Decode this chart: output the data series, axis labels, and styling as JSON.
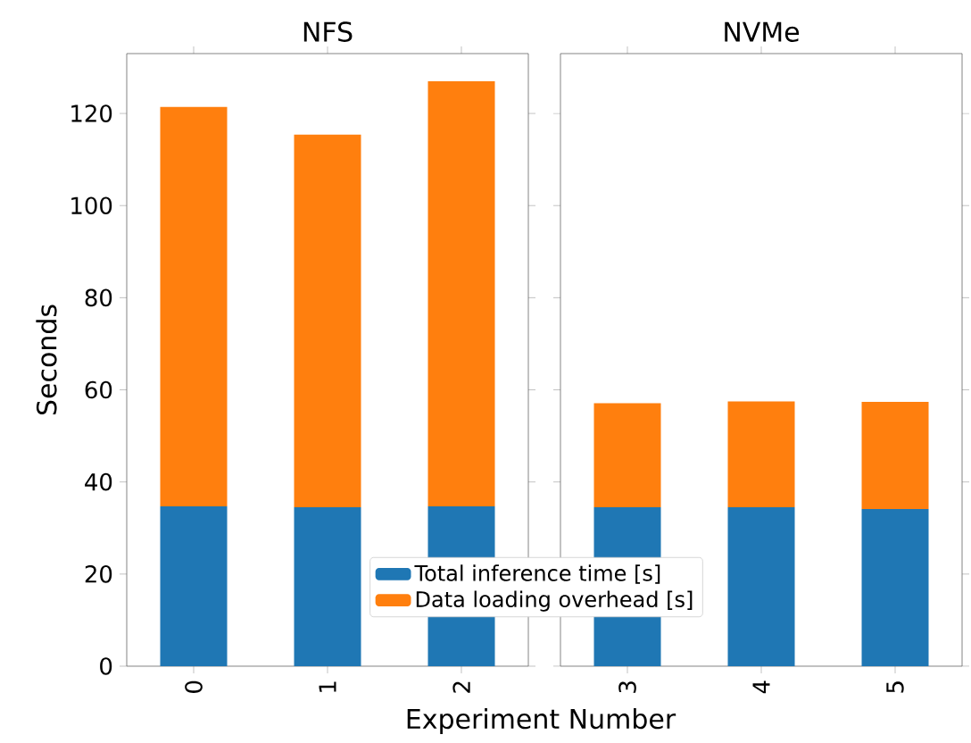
{
  "chart_data": [
    {
      "type": "bar",
      "title": "NFS",
      "xlabel": "Experiment Number",
      "ylabel": "Seconds",
      "categories": [
        "0",
        "1",
        "2"
      ],
      "stacked": true,
      "ylim": [
        0,
        133
      ],
      "yticks": [
        0,
        20,
        40,
        60,
        80,
        100,
        120
      ],
      "legend": "bottom",
      "series": [
        {
          "name": "Total inference time [s]",
          "color": "#1f77b4",
          "values": [
            34.7,
            34.5,
            34.7
          ]
        },
        {
          "name": "Data loading overhead [s]",
          "color": "#ff7f0e",
          "values": [
            86.7,
            80.9,
            92.3
          ]
        }
      ]
    },
    {
      "type": "bar",
      "title": "NVMe",
      "categories": [
        "3",
        "4",
        "5"
      ],
      "stacked": true,
      "ylim": [
        0,
        133
      ],
      "yticks": [
        0,
        20,
        40,
        60,
        80,
        100,
        120
      ],
      "tick_labels": "x",
      "series": [
        {
          "color": "#1f77b4",
          "values": [
            34.5,
            34.5,
            34.1
          ]
        },
        {
          "color": "#ff7f0e",
          "values": [
            22.6,
            23.0,
            23.3
          ]
        }
      ]
    }
  ]
}
